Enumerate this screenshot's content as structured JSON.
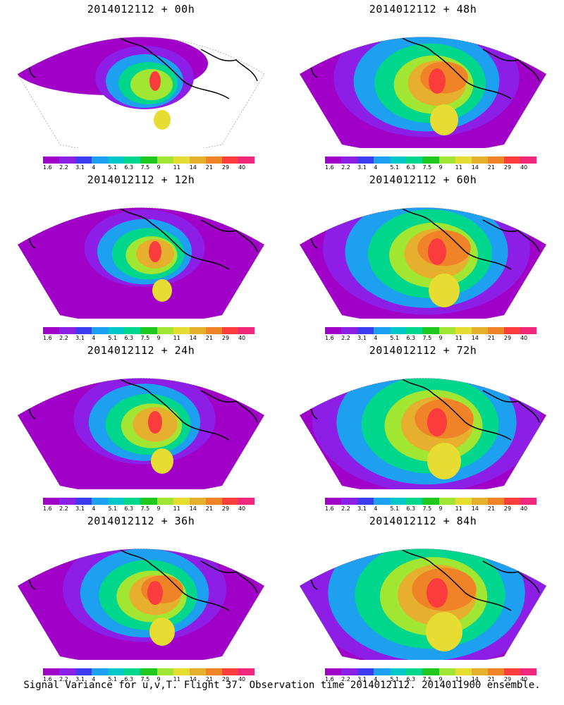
{
  "panels": [
    {
      "title": "2014012112 + 00h",
      "level": 0
    },
    {
      "title": "2014012112 + 48h",
      "level": 4
    },
    {
      "title": "2014012112 + 12h",
      "level": 1
    },
    {
      "title": "2014012112 + 60h",
      "level": 5
    },
    {
      "title": "2014012112 + 24h",
      "level": 2
    },
    {
      "title": "2014012112 + 72h",
      "level": 6
    },
    {
      "title": "2014012112 + 36h",
      "level": 3
    },
    {
      "title": "2014012112 + 84h",
      "level": 7
    }
  ],
  "colorbar": {
    "labels": [
      "1.6",
      "2.2",
      "3.1",
      "4",
      "5.1",
      "6.3",
      "7.5",
      "9",
      "11",
      "14",
      "21",
      "29",
      "40"
    ],
    "colors": [
      "#a000c8",
      "#8c1ee6",
      "#3c3cf0",
      "#1ea0f0",
      "#00c8c8",
      "#00d78c",
      "#1ec81e",
      "#a0e632",
      "#e6dc32",
      "#e6af2d",
      "#f08228",
      "#fa3c3c",
      "#f0287a"
    ]
  },
  "caption": "Signal Variance for u,v,T. Flight 37. Observation time 2014012112. 2014011900 ensemble."
}
